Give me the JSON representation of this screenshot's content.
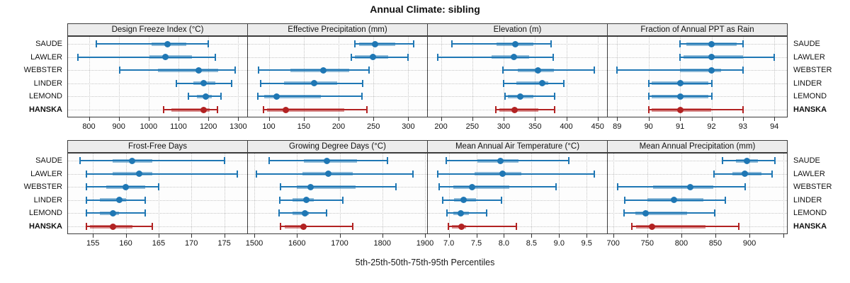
{
  "title": "Annual Climate: sibling",
  "caption": "5th-25th-50th-75th-95th Percentiles",
  "sites": [
    "SAUDE",
    "LAWLER",
    "WEBSTER",
    "LINDER",
    "LEMOND",
    "HANSKA"
  ],
  "highlight_site": "HANSKA",
  "percentile_labels": [
    "5th",
    "25th",
    "50th",
    "75th",
    "95th"
  ],
  "colors": {
    "series": "#1F77B4",
    "highlight": "#B22222",
    "strip_bg": "#ECECEC",
    "grid": "#C6C6C6",
    "border": "#3C3C3C"
  },
  "chart_data": [
    {
      "type": "dotplot-percentiles",
      "title": "Design Freeze Index (°C)",
      "row": 0,
      "col": 0,
      "xlim": [
        730,
        1330
      ],
      "ticks": [
        800,
        900,
        1000,
        1100,
        1200,
        1300
      ],
      "tick_labels": [
        "800",
        "900",
        "1000",
        "1100",
        "1200",
        "1300"
      ],
      "series": [
        {
          "name": "SAUDE",
          "values": [
            825,
            1010,
            1062,
            1127,
            1200
          ]
        },
        {
          "name": "LAWLER",
          "values": [
            763,
            1002,
            1057,
            1146,
            1224
          ]
        },
        {
          "name": "WEBSTER",
          "values": [
            902,
            1030,
            1168,
            1232,
            1290
          ]
        },
        {
          "name": "LINDER",
          "values": [
            1092,
            1149,
            1183,
            1223,
            1277
          ]
        },
        {
          "name": "LEMOND",
          "values": [
            1133,
            1162,
            1191,
            1212,
            1241
          ]
        },
        {
          "name": "HANSKA",
          "values": [
            1050,
            1076,
            1185,
            1205,
            1230
          ]
        }
      ]
    },
    {
      "type": "dotplot-percentiles",
      "title": "Effective Precipitation (mm)",
      "row": 0,
      "col": 1,
      "xlim": [
        70,
        327
      ],
      "ticks": [
        100,
        150,
        200,
        250,
        300
      ],
      "tick_labels": [
        "100",
        "150",
        "200",
        "250",
        "300"
      ],
      "series": [
        {
          "name": "SAUDE",
          "values": [
            223,
            229,
            252,
            281,
            308
          ]
        },
        {
          "name": "LAWLER",
          "values": [
            218,
            223,
            249,
            271,
            300
          ]
        },
        {
          "name": "WEBSTER",
          "values": [
            85,
            131,
            178,
            215,
            244
          ]
        },
        {
          "name": "LINDER",
          "values": [
            88,
            122,
            165,
            198,
            235
          ]
        },
        {
          "name": "LEMOND",
          "values": [
            84,
            93,
            111,
            175,
            234
          ]
        },
        {
          "name": "HANSKA",
          "values": [
            92,
            97,
            124,
            208,
            241
          ]
        }
      ]
    },
    {
      "type": "dotplot-percentiles",
      "title": "Elevation (m)",
      "row": 0,
      "col": 2,
      "xlim": [
        179,
        465
      ],
      "ticks": [
        200,
        250,
        300,
        350,
        400,
        450
      ],
      "tick_labels": [
        "200",
        "250",
        "300",
        "350",
        "400",
        "450"
      ],
      "series": [
        {
          "name": "SAUDE",
          "values": [
            217,
            289,
            319,
            347,
            376
          ]
        },
        {
          "name": "LAWLER",
          "values": [
            195,
            281,
            316,
            341,
            379
          ]
        },
        {
          "name": "WEBSTER",
          "values": [
            299,
            322,
            355,
            380,
            445
          ]
        },
        {
          "name": "LINDER",
          "values": [
            300,
            320,
            362,
            371,
            396
          ]
        },
        {
          "name": "LEMOND",
          "values": [
            302,
            307,
            326,
            348,
            381
          ]
        },
        {
          "name": "HANSKA",
          "values": [
            287,
            293,
            317,
            356,
            381
          ]
        }
      ]
    },
    {
      "type": "dotplot-percentiles",
      "title": "Fraction of Annual PPT as Rain",
      "row": 0,
      "col": 3,
      "xlim": [
        88.7,
        94.4
      ],
      "ticks": [
        89,
        90,
        91,
        92,
        93,
        94
      ],
      "tick_labels": [
        "89",
        "90",
        "91",
        "92",
        "93",
        "94"
      ],
      "series": [
        {
          "name": "SAUDE",
          "values": [
            91,
            91.2,
            92,
            92.8,
            93
          ]
        },
        {
          "name": "LAWLER",
          "values": [
            91,
            91.1,
            92,
            93,
            94
          ]
        },
        {
          "name": "WEBSTER",
          "values": [
            89,
            91,
            92,
            92.3,
            93
          ]
        },
        {
          "name": "LINDER",
          "values": [
            90,
            90.1,
            91,
            91.9,
            92
          ]
        },
        {
          "name": "LEMOND",
          "values": [
            90,
            90.1,
            91,
            91.9,
            92
          ]
        },
        {
          "name": "HANSKA",
          "values": [
            90,
            90.1,
            91,
            92,
            93
          ]
        }
      ]
    },
    {
      "type": "dotplot-percentiles",
      "title": "Frost-Free Days",
      "row": 1,
      "col": 0,
      "xlim": [
        151.2,
        178.5
      ],
      "ticks": [
        155,
        160,
        165,
        170,
        175
      ],
      "tick_labels": [
        "155",
        "160",
        "165",
        "170",
        "175"
      ],
      "series": [
        {
          "name": "SAUDE",
          "values": [
            153,
            158,
            161,
            164,
            175
          ]
        },
        {
          "name": "LAWLER",
          "values": [
            154,
            158,
            162,
            164,
            177
          ]
        },
        {
          "name": "WEBSTER",
          "values": [
            154,
            157,
            160,
            163,
            165
          ]
        },
        {
          "name": "LINDER",
          "values": [
            154,
            156,
            159,
            160,
            163
          ]
        },
        {
          "name": "LEMOND",
          "values": [
            154,
            156,
            158,
            159,
            163
          ]
        },
        {
          "name": "HANSKA",
          "values": [
            154,
            154.5,
            158,
            161,
            164
          ]
        }
      ]
    },
    {
      "type": "dotplot-percentiles",
      "title": "Growing Degree Days (°C)",
      "row": 1,
      "col": 1,
      "xlim": [
        1485,
        1905
      ],
      "ticks": [
        1500,
        1600,
        1700,
        1800,
        1900
      ],
      "tick_labels": [
        "1500",
        "1600",
        "1700",
        "1800",
        "1900"
      ],
      "series": [
        {
          "name": "SAUDE",
          "values": [
            1535,
            1616,
            1670,
            1740,
            1812
          ]
        },
        {
          "name": "LAWLER",
          "values": [
            1505,
            1613,
            1674,
            1730,
            1872
          ]
        },
        {
          "name": "WEBSTER",
          "values": [
            1562,
            1600,
            1632,
            1738,
            1832
          ]
        },
        {
          "name": "LINDER",
          "values": [
            1560,
            1589,
            1622,
            1640,
            1708
          ]
        },
        {
          "name": "LEMOND",
          "values": [
            1558,
            1589,
            1618,
            1628,
            1670
          ]
        },
        {
          "name": "HANSKA",
          "values": [
            1562,
            1572,
            1616,
            1622,
            1730
          ]
        }
      ]
    },
    {
      "type": "dotplot-percentiles",
      "title": "Mean Annual Air Temperature (°C)",
      "row": 1,
      "col": 2,
      "xlim": [
        6.62,
        9.87
      ],
      "ticks": [
        7.0,
        7.5,
        8.0,
        8.5,
        9.0,
        9.5
      ],
      "tick_labels": [
        "7.0",
        "7.5",
        "8.0",
        "8.5",
        "9.0",
        "9.5"
      ],
      "series": [
        {
          "name": "SAUDE",
          "values": [
            6.95,
            7.52,
            7.93,
            8.26,
            9.18
          ]
        },
        {
          "name": "LAWLER",
          "values": [
            6.8,
            7.47,
            7.97,
            8.31,
            9.64
          ]
        },
        {
          "name": "WEBSTER",
          "values": [
            6.83,
            7.08,
            7.42,
            8.1,
            8.95
          ]
        },
        {
          "name": "LINDER",
          "values": [
            6.89,
            7.1,
            7.27,
            7.5,
            7.95
          ]
        },
        {
          "name": "LEMOND",
          "values": [
            6.97,
            7.08,
            7.22,
            7.36,
            7.69
          ]
        },
        {
          "name": "HANSKA",
          "values": [
            6.99,
            7.06,
            7.23,
            7.32,
            8.22
          ]
        }
      ]
    },
    {
      "type": "dotplot-percentiles",
      "title": "Mean Annual Precipitation (mm)",
      "row": 1,
      "col": 3,
      "xlim": [
        692,
        955
      ],
      "ticks": [
        700,
        750,
        800,
        850,
        900,
        950
      ],
      "tick_labels": [
        "700",
        "750",
        "800",
        "850",
        "900",
        ""
      ],
      "series": [
        {
          "name": "SAUDE",
          "values": [
            860,
            880,
            896,
            912,
            937
          ]
        },
        {
          "name": "LAWLER",
          "values": [
            848,
            875,
            893,
            918,
            933
          ]
        },
        {
          "name": "WEBSTER",
          "values": [
            706,
            758,
            813,
            847,
            894
          ]
        },
        {
          "name": "LINDER",
          "values": [
            717,
            750,
            789,
            832,
            865
          ]
        },
        {
          "name": "LEMOND",
          "values": [
            716,
            732,
            748,
            808,
            849
          ]
        },
        {
          "name": "HANSKA",
          "values": [
            727,
            734,
            757,
            836,
            884
          ]
        }
      ]
    }
  ]
}
